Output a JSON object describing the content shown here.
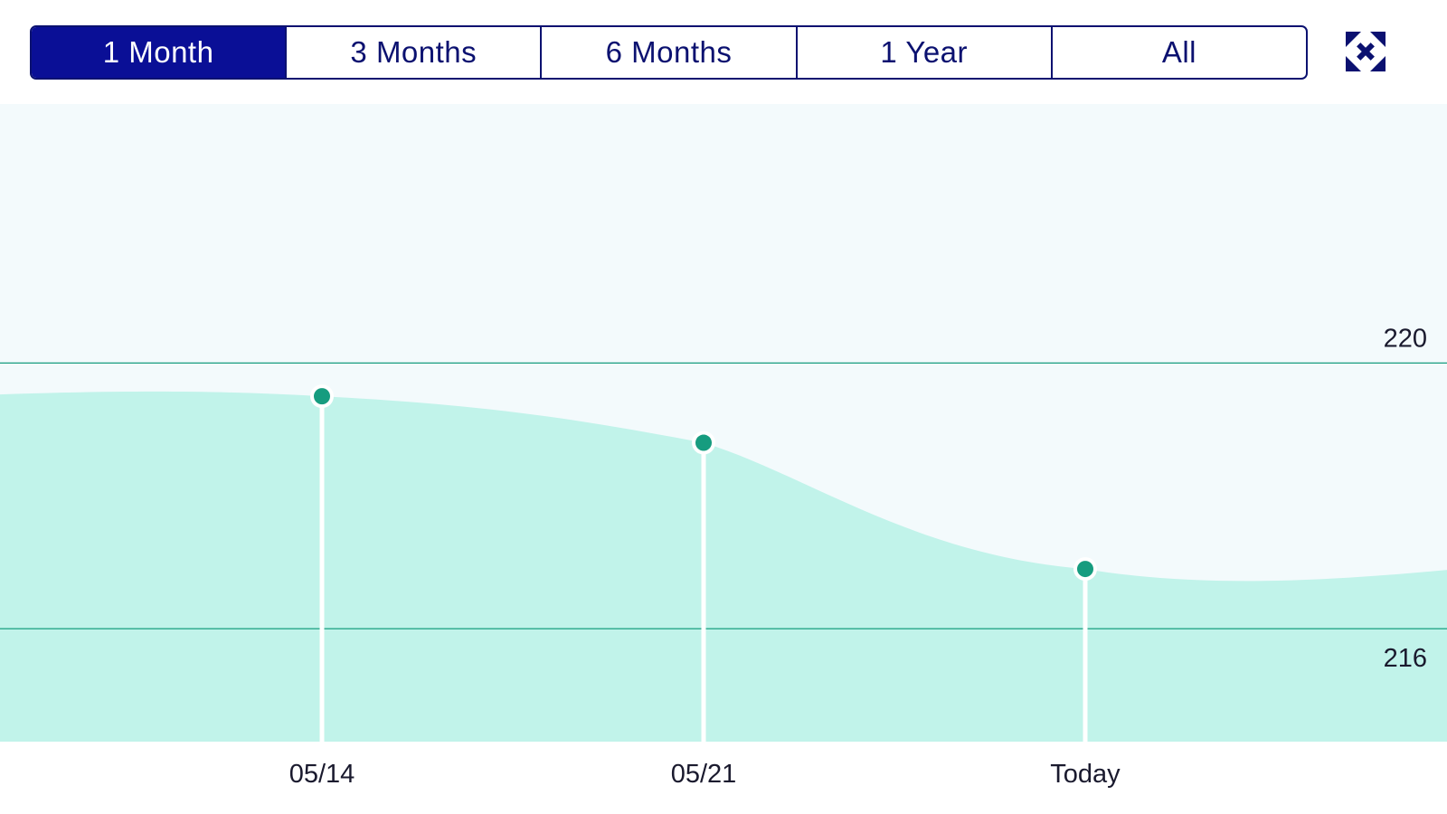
{
  "range_selector": {
    "tabs": [
      {
        "label": "1 Month",
        "active": true
      },
      {
        "label": "3 Months",
        "active": false
      },
      {
        "label": "6 Months",
        "active": false
      },
      {
        "label": "1 Year",
        "active": false
      },
      {
        "label": "All",
        "active": false
      }
    ]
  },
  "toolbar": {
    "collapse_icon": "collapse-arrows-icon"
  },
  "colors": {
    "navy": "#0b1170",
    "active_tab": "#0a0f96",
    "plot_background": "#f3fafc",
    "area_fill": "#c1f3ea",
    "point": "#169c7f",
    "gridline": "#169c7f"
  },
  "chart_data": {
    "type": "area",
    "x_labels": [
      "05/14",
      "05/21",
      "Today"
    ],
    "points": [
      {
        "label": "05/14",
        "value": 219.5
      },
      {
        "label": "05/21",
        "value": 218.8
      },
      {
        "label": "Today",
        "value": 216.9
      }
    ],
    "y_ticks": [
      220,
      216
    ],
    "ylim": [
      214.3,
      223.9
    ],
    "grid": true,
    "y_axis_position": "right",
    "title": "",
    "xlabel": "",
    "ylabel": ""
  }
}
